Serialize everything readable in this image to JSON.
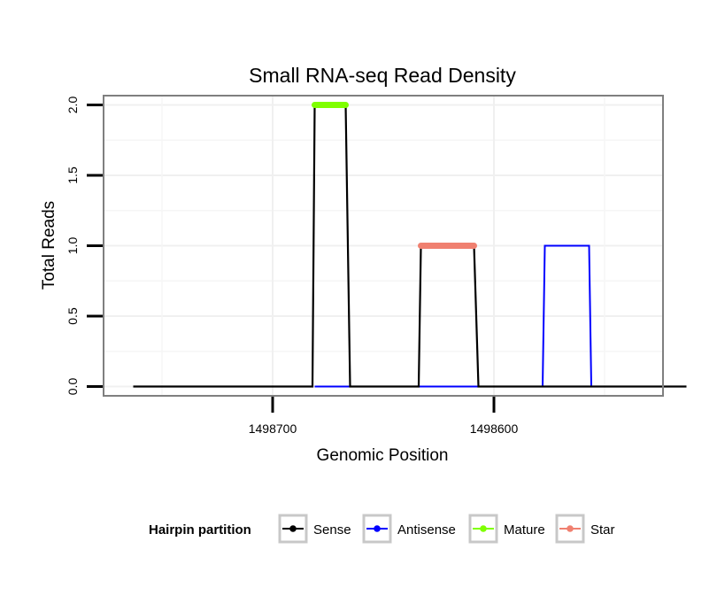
{
  "chart_data": {
    "type": "line",
    "title": "Small RNA-seq Read Density",
    "xlabel": "Genomic Position",
    "ylabel": "Total Reads",
    "x_reversed": true,
    "xlim": [
      1498776,
      1498524
    ],
    "ylim": [
      -0.06,
      2.06
    ],
    "x_ticks": [
      1498700,
      1498600
    ],
    "x_tick_labels": [
      "1498700",
      "1498600"
    ],
    "y_ticks": [
      0,
      0.5,
      1,
      1.5,
      2
    ],
    "y_tick_labels": [
      "0.0",
      "0.5",
      "1.0",
      "1.5",
      "2.0"
    ],
    "grid": true,
    "legend_title": "Hairpin partition",
    "legend_position": "bottom",
    "series": [
      {
        "name": "Sense",
        "color": "#000000",
        "points": [
          [
            1498763,
            0
          ],
          [
            1498682,
            0
          ],
          [
            1498681,
            2
          ],
          [
            1498667,
            2
          ],
          [
            1498665,
            0
          ],
          [
            1498634,
            0
          ],
          [
            1498633,
            1
          ],
          [
            1498609,
            1
          ],
          [
            1498607,
            0
          ],
          [
            1498513,
            0
          ]
        ]
      },
      {
        "name": "Antisense",
        "color": "#0000ff",
        "points": [
          [
            1498681,
            0
          ],
          [
            1498667,
            0
          ],
          [
            1498634,
            0
          ],
          [
            1498609,
            0
          ],
          [
            1498608,
            0
          ],
          [
            1498578,
            0
          ],
          [
            1498577,
            1
          ],
          [
            1498557,
            1
          ],
          [
            1498556,
            0
          ],
          [
            1498513,
            0
          ]
        ]
      },
      {
        "name": "Mature",
        "color": "#7fff00",
        "points": [
          [
            1498681,
            2
          ],
          [
            1498667,
            2
          ]
        ]
      },
      {
        "name": "Star",
        "color": "#f08070",
        "points": [
          [
            1498633,
            1
          ],
          [
            1498609,
            1
          ]
        ]
      }
    ]
  }
}
